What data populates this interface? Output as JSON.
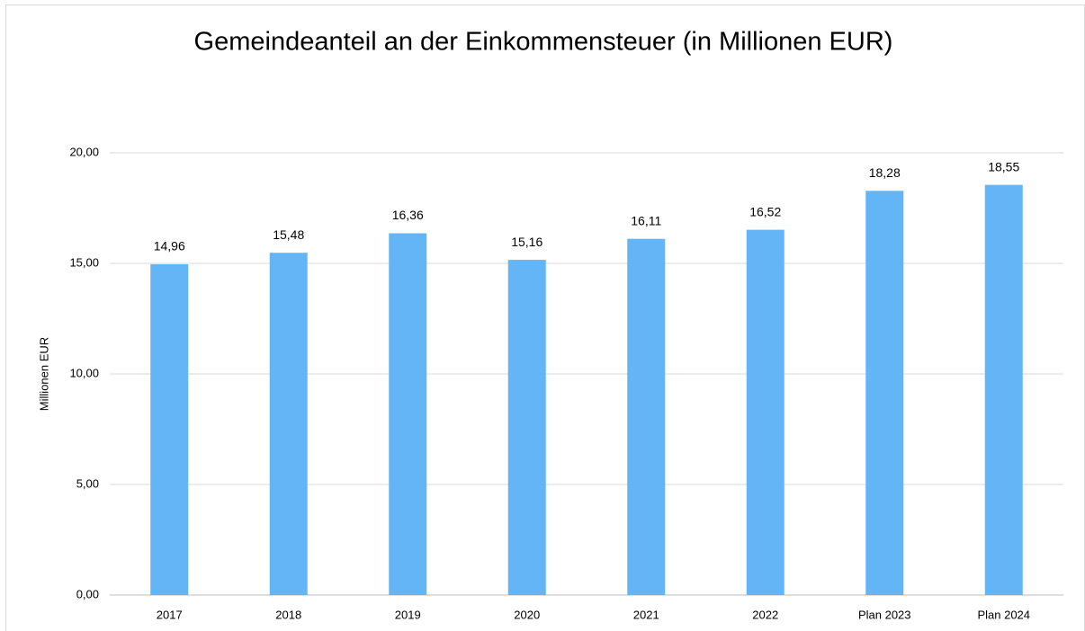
{
  "chart_data": {
    "type": "bar",
    "title": "Gemeindeanteil an der Einkommensteuer (in Millionen EUR)",
    "y_label": "Millionen EUR",
    "categories": [
      "2017",
      "2018",
      "2019",
      "2020",
      "2021",
      "2022",
      "Plan 2023",
      "Plan 2024"
    ],
    "values": [
      14.96,
      15.48,
      16.36,
      15.16,
      16.11,
      16.52,
      18.28,
      18.55
    ],
    "value_labels": [
      "14,96",
      "15,48",
      "16,36",
      "15,16",
      "16,11",
      "16,52",
      "18,28",
      "18,55"
    ],
    "color": "#64b5f6",
    "ylim": [
      0,
      20
    ],
    "yticks": [
      {
        "value": 0,
        "label": "0,00"
      },
      {
        "value": 5,
        "label": "5,00"
      },
      {
        "value": 10,
        "label": "10,00"
      },
      {
        "value": 15,
        "label": "15,00"
      },
      {
        "value": 20,
        "label": "20,00"
      }
    ],
    "grid": true
  }
}
